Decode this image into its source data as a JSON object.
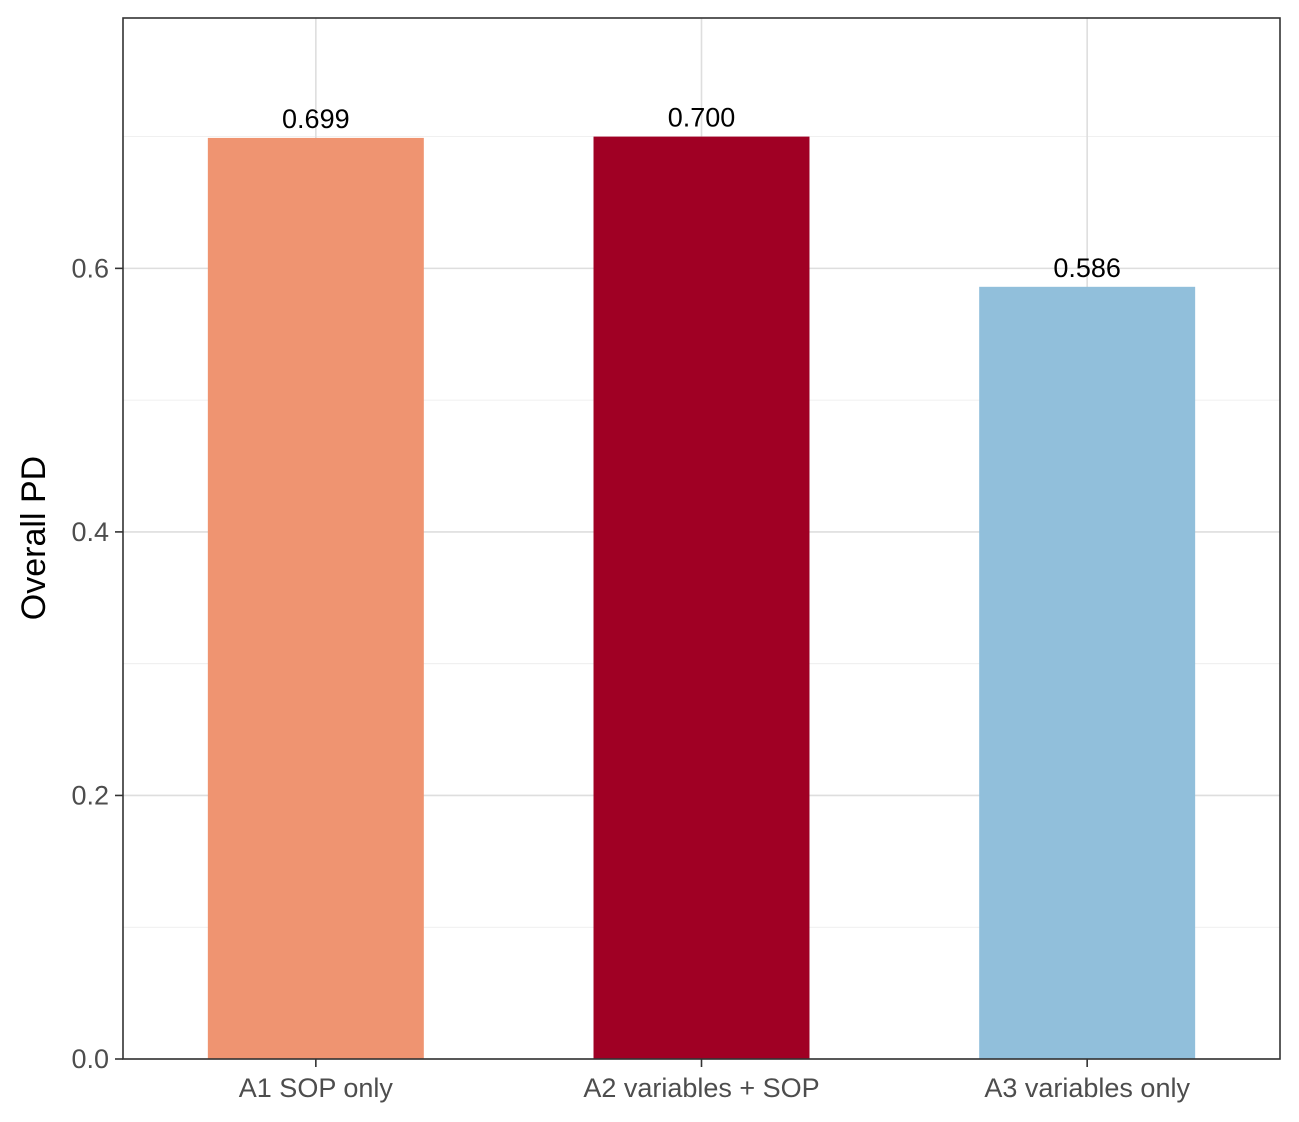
{
  "chart_data": {
    "type": "bar",
    "categories": [
      "A1 SOP only",
      "A2 variables + SOP",
      "A3 variables only"
    ],
    "values": [
      0.699,
      0.7,
      0.586
    ],
    "data_labels": [
      "0.699",
      "0.700",
      "0.586"
    ],
    "colors": [
      "#EF9471",
      "#A00024",
      "#91BFDB"
    ],
    "title": "",
    "xlabel": "",
    "ylabel": "Overall PD",
    "ylim": [
      0,
      0.79
    ],
    "yticks": [
      0.0,
      0.2,
      0.4,
      0.6
    ],
    "ytick_labels": [
      "0.0",
      "0.2",
      "0.4",
      "0.6"
    ],
    "grid": true,
    "legend": "none"
  }
}
